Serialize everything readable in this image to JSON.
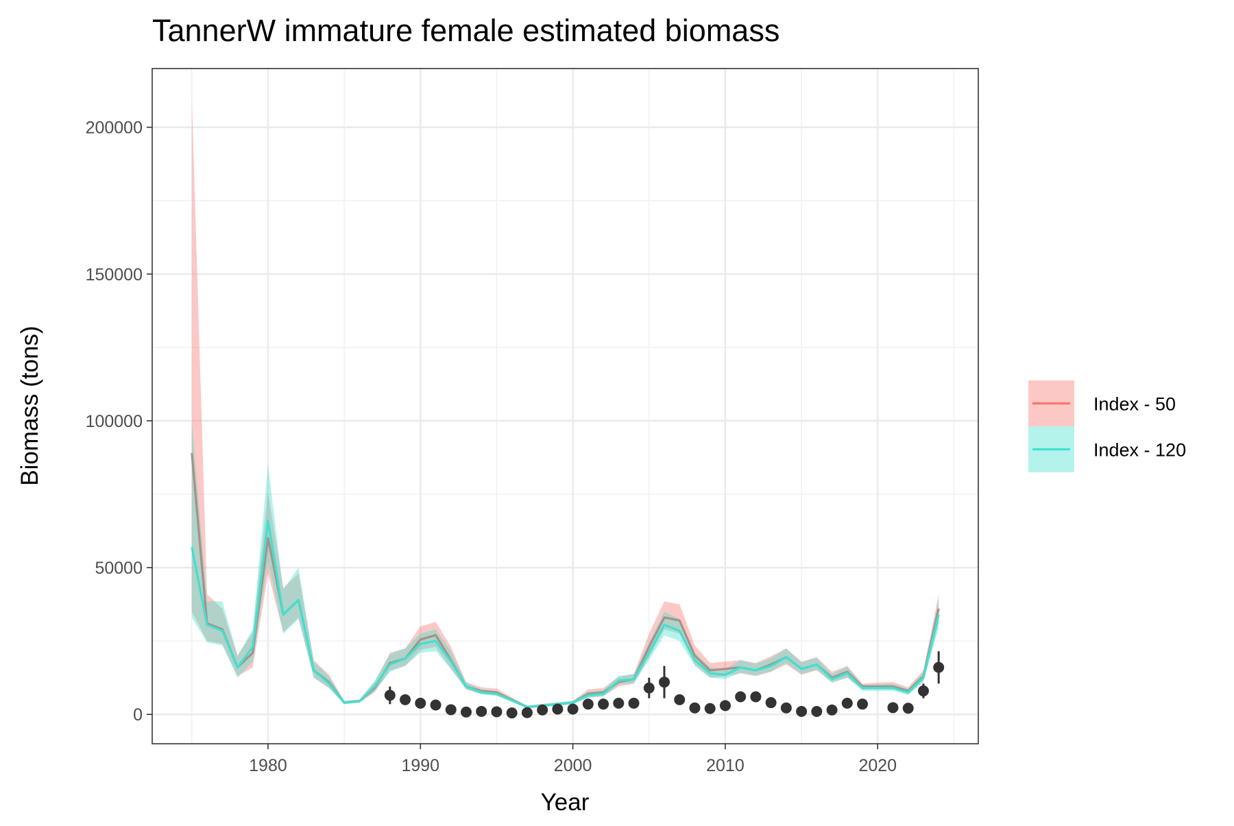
{
  "chart_data": {
    "type": "line",
    "title": "TannerW immature female estimated biomass",
    "xlabel": "Year",
    "ylabel": "Biomass (tons)",
    "xlim": [
      1972.4,
      2026.6
    ],
    "ylim": [
      -10000,
      220000
    ],
    "x_ticks": [
      1980,
      1990,
      2000,
      2010,
      2020
    ],
    "y_ticks": [
      0,
      50000,
      100000,
      150000,
      200000
    ],
    "grid": true,
    "legend_position": "right",
    "series": [
      {
        "name": "Index - 50",
        "color": "#F8766D",
        "x": [
          1975,
          1976,
          1977,
          1978,
          1979,
          1980,
          1981,
          1982,
          1983,
          1984,
          1985,
          1986,
          1987,
          1988,
          1989,
          1990,
          1991,
          1992,
          1993,
          1994,
          1995,
          1996,
          1997,
          1998,
          1999,
          2000,
          2001,
          2002,
          2003,
          2004,
          2005,
          2006,
          2007,
          2008,
          2009,
          2010,
          2011,
          2012,
          2013,
          2014,
          2015,
          2016,
          2017,
          2018,
          2019,
          2020,
          2021,
          2022,
          2023,
          2024
        ],
        "values": [
          89000,
          31000,
          29000,
          16000,
          21000,
          60000,
          34000,
          39000,
          15000,
          11000,
          4000,
          4500,
          9000,
          17500,
          19000,
          25500,
          27000,
          18500,
          9500,
          8000,
          7500,
          5000,
          2500,
          3000,
          3500,
          4000,
          7000,
          7500,
          11000,
          12000,
          23000,
          33000,
          32000,
          20000,
          15000,
          15500,
          16000,
          15000,
          17000,
          19500,
          15500,
          17000,
          12500,
          14500,
          9500,
          9500,
          9500,
          8000,
          13000,
          36000
        ],
        "lower": [
          35000,
          25000,
          24000,
          13000,
          16000,
          48000,
          28000,
          33000,
          12500,
          9000,
          3500,
          4000,
          7500,
          15000,
          16500,
          22000,
          23000,
          15500,
          8500,
          7000,
          6500,
          4300,
          2000,
          2500,
          3000,
          3500,
          5800,
          6200,
          9500,
          10500,
          19500,
          29000,
          27500,
          17000,
          12500,
          13000,
          14000,
          13000,
          14500,
          17000,
          13500,
          15000,
          11000,
          12500,
          8500,
          8500,
          8500,
          7000,
          11500,
          31000
        ],
        "upper": [
          210000,
          41000,
          36000,
          20000,
          28000,
          76000,
          43000,
          48000,
          18500,
          13500,
          4600,
          5100,
          11000,
          21000,
          22500,
          30000,
          31500,
          23000,
          11000,
          9200,
          8800,
          5800,
          3000,
          3600,
          4100,
          4600,
          8500,
          9000,
          12700,
          13800,
          27500,
          38500,
          37500,
          23500,
          17500,
          18000,
          18500,
          17500,
          19800,
          22500,
          18000,
          19500,
          14500,
          16500,
          10500,
          10800,
          11000,
          9300,
          15000,
          41000
        ]
      },
      {
        "name": "Index - 120",
        "color": "#40E0D0",
        "x": [
          1975,
          1976,
          1977,
          1978,
          1979,
          1980,
          1981,
          1982,
          1983,
          1984,
          1985,
          1986,
          1987,
          1988,
          1989,
          1990,
          1991,
          1992,
          1993,
          1994,
          1995,
          1996,
          1997,
          1998,
          1999,
          2000,
          2001,
          2002,
          2003,
          2004,
          2005,
          2006,
          2007,
          2008,
          2009,
          2010,
          2011,
          2012,
          2013,
          2014,
          2015,
          2016,
          2017,
          2018,
          2019,
          2020,
          2021,
          2022,
          2023,
          2024
        ],
        "values": [
          57000,
          30500,
          28500,
          16000,
          23000,
          66000,
          34000,
          39000,
          15000,
          10500,
          4000,
          4500,
          9500,
          17000,
          19000,
          24000,
          25000,
          18000,
          9500,
          7500,
          7000,
          4800,
          2500,
          3000,
          3500,
          4000,
          6500,
          7000,
          11500,
          12000,
          21000,
          30500,
          28500,
          18500,
          14000,
          13500,
          16000,
          15000,
          16500,
          19500,
          15500,
          17000,
          12000,
          14000,
          9000,
          9000,
          9000,
          7500,
          12500,
          34000
        ],
        "lower": [
          33000,
          24500,
          23500,
          12500,
          18000,
          52000,
          27500,
          32500,
          12500,
          9000,
          3500,
          4000,
          8000,
          14500,
          16500,
          21000,
          21500,
          15500,
          8500,
          6800,
          6300,
          4200,
          2100,
          2600,
          3000,
          3500,
          5600,
          6100,
          10200,
          10600,
          18500,
          27000,
          25000,
          16500,
          12500,
          12000,
          14200,
          13300,
          14700,
          17500,
          13800,
          15200,
          10700,
          12500,
          8000,
          8000,
          8000,
          6600,
          11000,
          29500
        ],
        "upper": [
          100000,
          38500,
          38500,
          20000,
          29000,
          85000,
          42500,
          50000,
          18000,
          13000,
          4600,
          5000,
          11500,
          20500,
          22500,
          27500,
          29000,
          21500,
          10800,
          8500,
          8000,
          5400,
          3000,
          3500,
          4100,
          4600,
          7800,
          8300,
          13200,
          13700,
          24500,
          35000,
          32500,
          21000,
          16000,
          15500,
          18500,
          17300,
          19100,
          22500,
          17700,
          19300,
          13800,
          16300,
          10000,
          10200,
          10400,
          8700,
          14500,
          39000
        ]
      }
    ],
    "observed": {
      "x": [
        1988,
        1989,
        1990,
        1991,
        1992,
        1993,
        1994,
        1995,
        1996,
        1997,
        1998,
        1999,
        2000,
        2001,
        2002,
        2003,
        2004,
        2005,
        2006,
        2007,
        2008,
        2009,
        2010,
        2011,
        2012,
        2013,
        2014,
        2015,
        2016,
        2017,
        2018,
        2019,
        2021,
        2022,
        2023,
        2024
      ],
      "values": [
        6500,
        5000,
        3800,
        3200,
        1600,
        800,
        1000,
        900,
        500,
        600,
        1500,
        1800,
        1800,
        3500,
        3500,
        3800,
        3800,
        9000,
        11000,
        5000,
        2200,
        2000,
        3000,
        6000,
        6000,
        4000,
        2200,
        1000,
        1000,
        1500,
        3800,
        3500,
        2300,
        2100,
        8000,
        16000
      ],
      "lower": [
        3500,
        null,
        null,
        null,
        null,
        null,
        null,
        null,
        null,
        null,
        null,
        null,
        null,
        null,
        null,
        null,
        null,
        5500,
        5500,
        null,
        null,
        null,
        null,
        null,
        null,
        null,
        null,
        null,
        null,
        null,
        null,
        null,
        null,
        null,
        5500,
        10500
      ],
      "upper": [
        9500,
        null,
        null,
        null,
        null,
        null,
        null,
        null,
        null,
        null,
        null,
        null,
        null,
        null,
        null,
        null,
        null,
        12500,
        16500,
        null,
        null,
        null,
        null,
        null,
        null,
        null,
        null,
        null,
        null,
        null,
        null,
        null,
        null,
        null,
        10500,
        21500
      ],
      "color": "#333333"
    }
  }
}
